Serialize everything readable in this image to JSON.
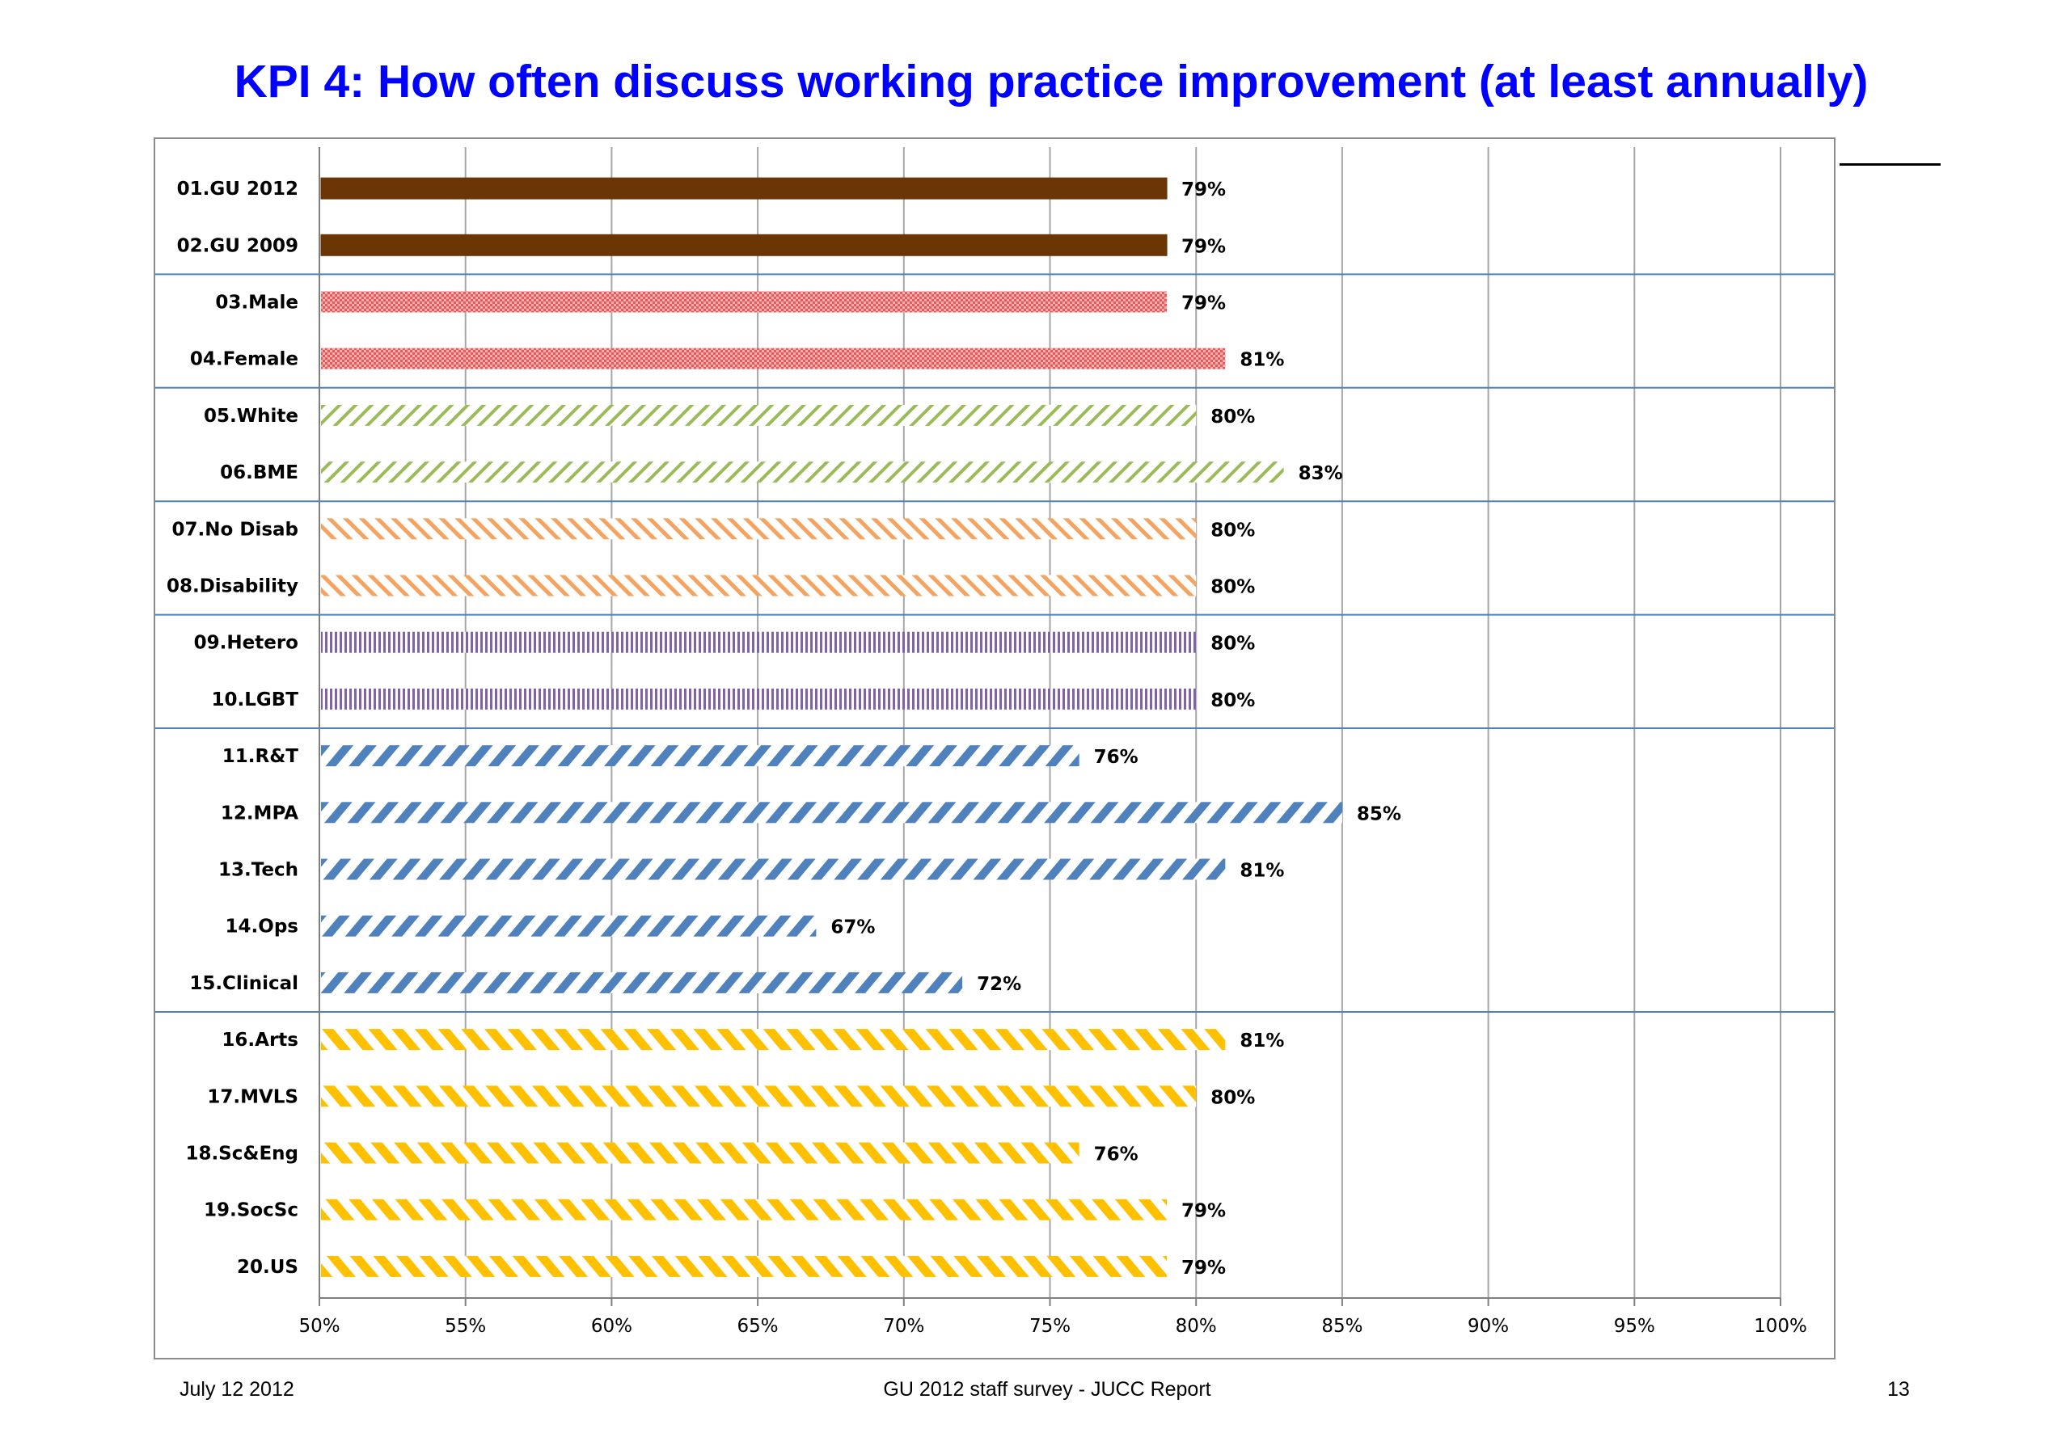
{
  "slide": {
    "title": "KPI 4: How often discuss working practice improvement (at least annually)",
    "footer_date": "July 12 2012",
    "footer_center": "GU 2012 staff survey -  JUCC Report",
    "footer_page": "13"
  },
  "chart_data": {
    "type": "bar",
    "orientation": "horizontal",
    "title": "",
    "xlabel": "",
    "ylabel": "",
    "xlim": [
      0.5,
      1.0
    ],
    "x_ticks": [
      "50%",
      "55%",
      "60%",
      "65%",
      "70%",
      "75%",
      "80%",
      "85%",
      "90%",
      "95%",
      "100%"
    ],
    "grid": true,
    "categories": [
      "01.GU 2012",
      "02.GU 2009",
      "03.Male",
      "04.Female",
      "05.White",
      "06.BME",
      "07.No Disab",
      "08.Disability",
      "09.Hetero",
      "10.LGBT",
      "11.R&T",
      "12.MPA",
      "13.Tech",
      "14.Ops",
      "15.Clinical",
      "16.Arts",
      "17.MVLS",
      "18.Sc&Eng",
      "19.SocSc",
      "20.US"
    ],
    "values": [
      0.79,
      0.79,
      0.79,
      0.81,
      0.8,
      0.83,
      0.8,
      0.8,
      0.8,
      0.8,
      0.76,
      0.85,
      0.81,
      0.67,
      0.72,
      0.81,
      0.8,
      0.76,
      0.79,
      0.79
    ],
    "labels": [
      "79%",
      "79%",
      "79%",
      "81%",
      "80%",
      "83%",
      "80%",
      "80%",
      "80%",
      "80%",
      "76%",
      "85%",
      "81%",
      "67%",
      "72%",
      "81%",
      "80%",
      "76%",
      "79%",
      "79%"
    ],
    "groups": [
      {
        "rows": [
          0,
          1
        ],
        "color": "#6b3506",
        "pattern": "solid"
      },
      {
        "rows": [
          2,
          3
        ],
        "color": "#f07070",
        "pattern": "dots"
      },
      {
        "rows": [
          4,
          5
        ],
        "color": "#9bbb59",
        "pattern": "diag-down"
      },
      {
        "rows": [
          6,
          7
        ],
        "color": "#f4a460",
        "pattern": "diag-up"
      },
      {
        "rows": [
          8,
          9
        ],
        "color": "#8064a2",
        "pattern": "vertical"
      },
      {
        "rows": [
          10,
          11,
          12,
          13,
          14
        ],
        "color": "#4f81bd",
        "pattern": "wide-diag-down"
      },
      {
        "rows": [
          15,
          16,
          17,
          18,
          19
        ],
        "color": "#ffc000",
        "pattern": "wide-diag-up"
      }
    ],
    "separator_color": "#4f81bd"
  }
}
